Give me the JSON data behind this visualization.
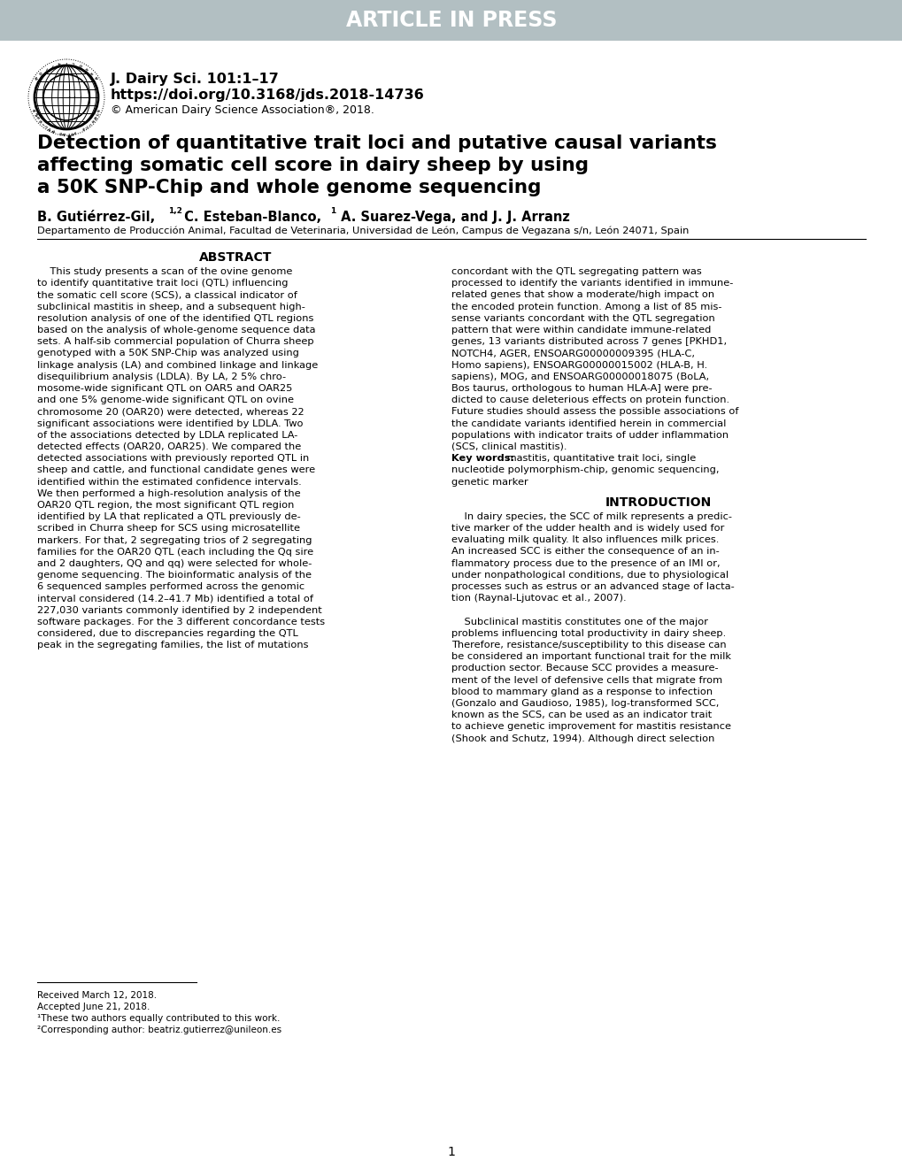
{
  "header_bg": "#b2bfc2",
  "header_text": "ARTICLE IN PRESS",
  "journal_line1": "J. Dairy Sci. 101:1–17",
  "journal_line2": "https://doi.org/10.3168/jds.2018-14736",
  "journal_line3": "© American Dairy Science Association®, 2018.",
  "title_line1": "Detection of quantitative trait loci and putative causal variants",
  "title_line2": "affecting somatic cell score in dairy sheep by using",
  "title_line3": "a 50K SNP-Chip and whole genome sequencing",
  "author_bold": "B. Gutiérrez-Gil,",
  "author_sup1": "1,2",
  "author_bold2": " C. Esteban-Blanco,",
  "author_sup2": "1",
  "author_bold3": " A. Suarez-Vega, and J. J. Arranz",
  "affiliation": "Departamento de Producción Animal, Facultad de Veterinaria, Universidad de León, Campus de Vegazana s/n, León 24071, Spain",
  "abstract_heading": "ABSTRACT",
  "abstract_left": [
    "    This study presents a scan of the ovine genome",
    "to identify quantitative trait loci (QTL) influencing",
    "the somatic cell score (SCS), a classical indicator of",
    "subclinical mastitis in sheep, and a subsequent high-",
    "resolution analysis of one of the identified QTL regions",
    "based on the analysis of whole-genome sequence data",
    "sets. A half-sib commercial population of Churra sheep",
    "genotyped with a 50K SNP-Chip was analyzed using",
    "linkage analysis (LA) and combined linkage and linkage",
    "disequilibrium analysis (LDLA). By LA, 2 5% chro-",
    "mosome-wide significant QTL on OAR5 and OAR25",
    "and one 5% genome-wide significant QTL on ovine",
    "chromosome 20 (OAR20) were detected, whereas 22",
    "significant associations were identified by LDLA. Two",
    "of the associations detected by LDLA replicated LA-",
    "detected effects (OAR20, OAR25). We compared the",
    "detected associations with previously reported QTL in",
    "sheep and cattle, and functional candidate genes were",
    "identified within the estimated confidence intervals.",
    "We then performed a high-resolution analysis of the",
    "OAR20 QTL region, the most significant QTL region",
    "identified by LA that replicated a QTL previously de-",
    "scribed in Churra sheep for SCS using microsatellite",
    "markers. For that, 2 segregating trios of 2 segregating",
    "families for the OAR20 QTL (each including the Qq sire",
    "and 2 daughters, QQ and qq) were selected for whole-",
    "genome sequencing. The bioinformatic analysis of the",
    "6 sequenced samples performed across the genomic",
    "interval considered (14.2–41.7 Mb) identified a total of",
    "227,030 variants commonly identified by 2 independent",
    "software packages. For the 3 different concordance tests",
    "considered, due to discrepancies regarding the QTL",
    "peak in the segregating families, the list of mutations"
  ],
  "abstract_right": [
    "concordant with the QTL segregating pattern was",
    "processed to identify the variants identified in immune-",
    "related genes that show a moderate/high impact on",
    "the encoded protein function. Among a list of 85 mis-",
    "sense variants concordant with the QTL segregation",
    "pattern that were within candidate immune-related",
    "genes, 13 variants distributed across 7 genes [PKHD1,",
    "NOTCH4, AGER, ENSOARG00000009395 (HLA-C,",
    "Homo sapiens), ENSOARG00000015002 (HLA-B, H.",
    "sapiens), MOG, and ENSOARG00000018075 (BoLA,",
    "Bos taurus, orthologous to human HLA-A] were pre-",
    "dicted to cause deleterious effects on protein function.",
    "Future studies should assess the possible associations of",
    "the candidate variants identified herein in commercial",
    "populations with indicator traits of udder inflammation",
    "(SCS, clinical mastitis).",
    "Key words: mastitis, quantitative trait loci, single",
    "nucleotide polymorphism-chip, genomic sequencing,",
    "genetic marker"
  ],
  "intro_heading": "INTRODUCTION",
  "intro_right": [
    "    In dairy species, the SCC of milk represents a predic-",
    "tive marker of the udder health and is widely used for",
    "evaluating milk quality. It also influences milk prices.",
    "An increased SCC is either the consequence of an in-",
    "flammatory process due to the presence of an IMI or,",
    "under nonpathological conditions, due to physiological",
    "processes such as estrus or an advanced stage of lacta-",
    "tion (Raynal-Ljutovac et al., 2007).",
    "",
    "    Subclinical mastitis constitutes one of the major",
    "problems influencing total productivity in dairy sheep.",
    "Therefore, resistance/susceptibility to this disease can",
    "be considered an important functional trait for the milk",
    "production sector. Because SCC provides a measure-",
    "ment of the level of defensive cells that migrate from",
    "blood to mammary gland as a response to infection",
    "(Gonzalo and Gaudioso, 1985), log-transformed SCC,",
    "known as the SCS, can be used as an indicator trait",
    "to achieve genetic improvement for mastitis resistance",
    "(Shook and Schutz, 1994). Although direct selection"
  ],
  "footnote1": "Received March 12, 2018.",
  "footnote2": "Accepted June 21, 2018.",
  "footnote3": "¹These two authors equally contributed to this work.",
  "footnote4": "²Corresponding author: beatriz.gutierrez@unileon.es",
  "page_num": "1"
}
